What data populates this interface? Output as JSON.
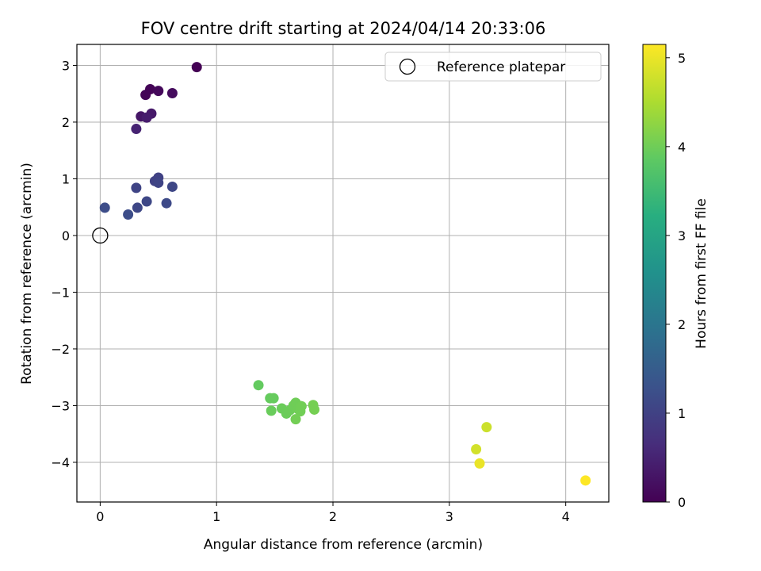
{
  "chart_data": {
    "type": "scatter",
    "title": "FOV centre drift starting at 2024/04/14 20:33:06",
    "xlabel": "Angular distance from reference (arcmin)",
    "ylabel": "Rotation from reference (arcmin)",
    "xlim": [
      -0.2,
      4.37
    ],
    "ylim": [
      -4.7,
      3.37
    ],
    "xticks": [
      0,
      1,
      2,
      3,
      4
    ],
    "xtick_labels": [
      "0",
      "1",
      "2",
      "3",
      "4"
    ],
    "yticks": [
      3,
      2,
      1,
      0,
      -1,
      -2,
      -3,
      -4
    ],
    "ytick_labels": [
      "3",
      "2",
      "1",
      "0",
      "−1",
      "−2",
      "−3",
      "−4"
    ],
    "grid": true,
    "legend": {
      "placement": "top-right",
      "entries": [
        "Reference platepar"
      ]
    },
    "reference_point": {
      "x": 0,
      "y": 0
    },
    "colorbar": {
      "label": "Hours from first FF file",
      "range": [
        0,
        5.15
      ],
      "ticks": [
        0,
        1,
        2,
        3,
        4,
        5
      ],
      "tick_labels": [
        "0",
        "1",
        "2",
        "3",
        "4",
        "5"
      ],
      "colormap": "viridis"
    },
    "points": [
      {
        "x": 0.83,
        "y": 2.97,
        "hours": 0.0
      },
      {
        "x": 0.43,
        "y": 2.58,
        "hours": 0.05
      },
      {
        "x": 0.5,
        "y": 2.55,
        "hours": 0.1
      },
      {
        "x": 0.39,
        "y": 2.48,
        "hours": 0.05
      },
      {
        "x": 0.62,
        "y": 2.51,
        "hours": 0.15
      },
      {
        "x": 0.44,
        "y": 2.15,
        "hours": 0.35
      },
      {
        "x": 0.35,
        "y": 2.1,
        "hours": 0.3
      },
      {
        "x": 0.4,
        "y": 2.08,
        "hours": 0.4
      },
      {
        "x": 0.31,
        "y": 1.88,
        "hours": 0.5
      },
      {
        "x": 0.5,
        "y": 1.02,
        "hours": 1.0
      },
      {
        "x": 0.47,
        "y": 0.96,
        "hours": 1.0
      },
      {
        "x": 0.5,
        "y": 0.93,
        "hours": 1.05
      },
      {
        "x": 0.31,
        "y": 0.84,
        "hours": 1.05
      },
      {
        "x": 0.62,
        "y": 0.86,
        "hours": 1.1
      },
      {
        "x": 0.04,
        "y": 0.49,
        "hours": 1.2
      },
      {
        "x": 0.32,
        "y": 0.49,
        "hours": 1.1
      },
      {
        "x": 0.4,
        "y": 0.6,
        "hours": 1.1
      },
      {
        "x": 0.57,
        "y": 0.57,
        "hours": 1.15
      },
      {
        "x": 0.24,
        "y": 0.37,
        "hours": 1.2
      },
      {
        "x": 1.36,
        "y": -2.64,
        "hours": 3.9
      },
      {
        "x": 1.46,
        "y": -2.87,
        "hours": 3.92
      },
      {
        "x": 1.49,
        "y": -2.87,
        "hours": 3.93
      },
      {
        "x": 1.47,
        "y": -3.09,
        "hours": 3.95
      },
      {
        "x": 1.56,
        "y": -3.05,
        "hours": 3.96
      },
      {
        "x": 1.6,
        "y": -3.14,
        "hours": 3.97
      },
      {
        "x": 1.63,
        "y": -3.08,
        "hours": 3.98
      },
      {
        "x": 1.66,
        "y": -3.0,
        "hours": 3.99
      },
      {
        "x": 1.68,
        "y": -2.95,
        "hours": 4.0
      },
      {
        "x": 1.7,
        "y": -3.06,
        "hours": 4.0
      },
      {
        "x": 1.72,
        "y": -3.1,
        "hours": 4.02
      },
      {
        "x": 1.73,
        "y": -3.01,
        "hours": 4.02
      },
      {
        "x": 1.68,
        "y": -3.24,
        "hours": 4.03
      },
      {
        "x": 1.83,
        "y": -2.99,
        "hours": 4.05
      },
      {
        "x": 1.84,
        "y": -3.07,
        "hours": 4.05
      },
      {
        "x": 3.32,
        "y": -3.38,
        "hours": 4.75
      },
      {
        "x": 3.23,
        "y": -3.77,
        "hours": 4.8
      },
      {
        "x": 3.26,
        "y": -4.02,
        "hours": 5.0
      },
      {
        "x": 4.17,
        "y": -4.32,
        "hours": 5.15
      }
    ]
  }
}
